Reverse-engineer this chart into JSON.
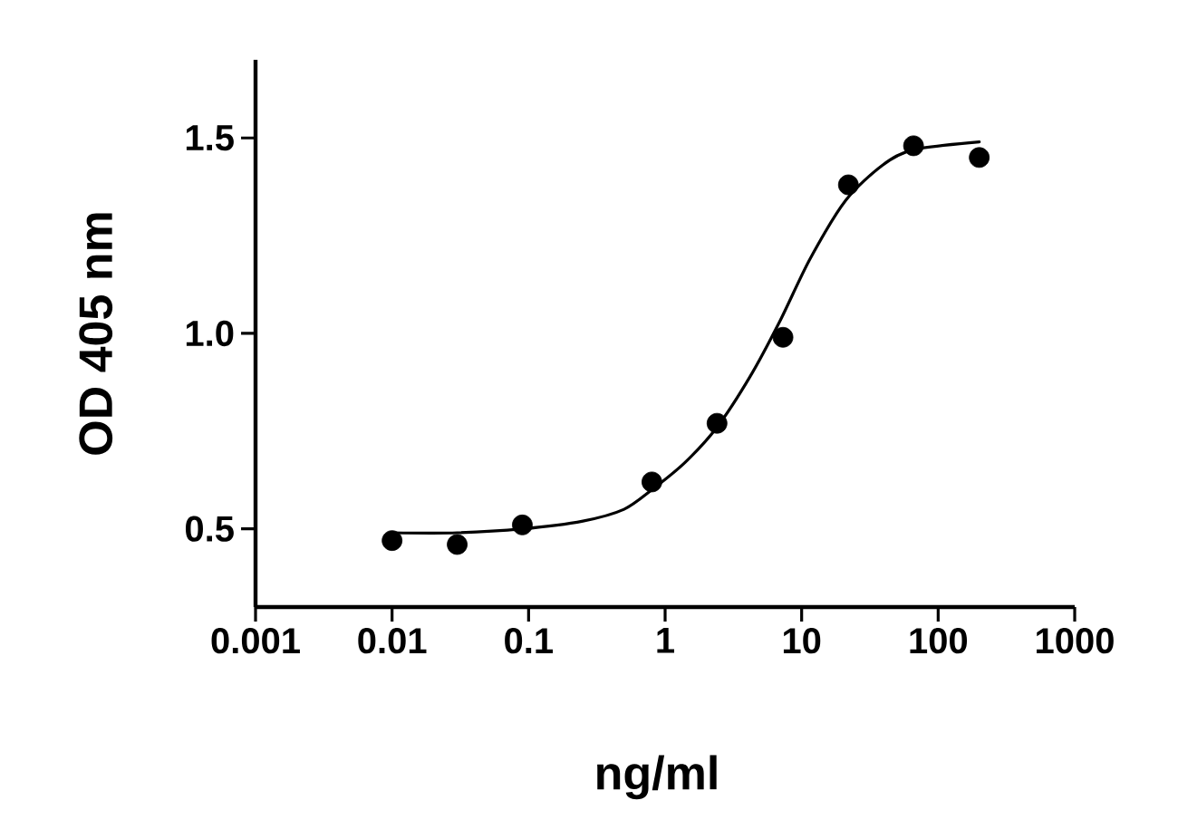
{
  "chart_data": {
    "type": "scatter",
    "xlabel": "ng/ml",
    "ylabel": "OD 405 nm",
    "log": "x",
    "xlim": [
      0.001,
      1000
    ],
    "xticks": [
      0.001,
      0.01,
      0.1,
      1,
      10,
      100,
      1000
    ],
    "ylim": [
      0.3,
      1.7
    ],
    "yticks": [
      0.5,
      {
        "value": 1,
        "label": "1.0"
      },
      1.5
    ],
    "marker": "circle",
    "series": [
      {
        "color": "#000000",
        "x": [
          0.01,
          0.03,
          0.09,
          0.8,
          2.4,
          7.3,
          22,
          66,
          200
        ],
        "values": [
          0.47,
          0.46,
          0.51,
          0.62,
          0.77,
          0.99,
          1.38,
          1.48,
          1.45
        ]
      },
      {
        "type": "line",
        "color": "#000000",
        "marker": "none",
        "line_style": "solid",
        "x": [
          0.01,
          0.03,
          0.09,
          0.25,
          0.5,
          0.8,
          1.4,
          2.4,
          4.2,
          6.9,
          11.5,
          21,
          39,
          66,
          200
        ],
        "values": [
          0.49,
          0.49,
          0.5,
          0.52,
          0.55,
          0.6,
          0.67,
          0.76,
          0.89,
          1.03,
          1.19,
          1.34,
          1.43,
          1.47,
          1.49
        ]
      }
    ]
  }
}
